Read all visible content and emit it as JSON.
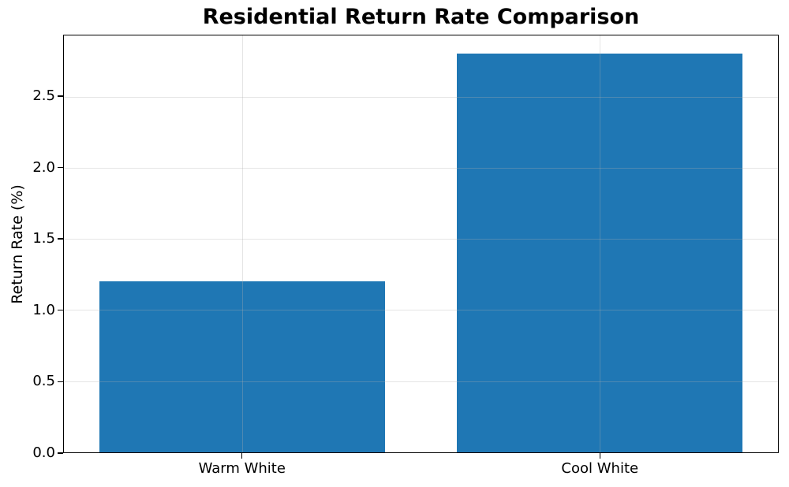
{
  "chart_data": {
    "type": "bar",
    "title": "Residential Return Rate Comparison",
    "categories": [
      "Warm White",
      "Cool White"
    ],
    "values": [
      1.2,
      2.8
    ],
    "xlabel": "",
    "ylabel": "Return Rate (%)",
    "ylim": [
      0,
      2.93
    ],
    "yticks": [
      0.0,
      0.5,
      1.0,
      1.5,
      2.0,
      2.5
    ],
    "ytick_labels": [
      "0.0",
      "0.5",
      "1.0",
      "1.5",
      "2.0",
      "2.5"
    ],
    "bar_color": "#1f77b4",
    "bar_width_fraction": 0.8,
    "grid": true,
    "grid_color_rgba": "rgba(176,176,176,0.33)",
    "legend": null,
    "background_color": "#ffffff",
    "spine_color": "#000000"
  }
}
